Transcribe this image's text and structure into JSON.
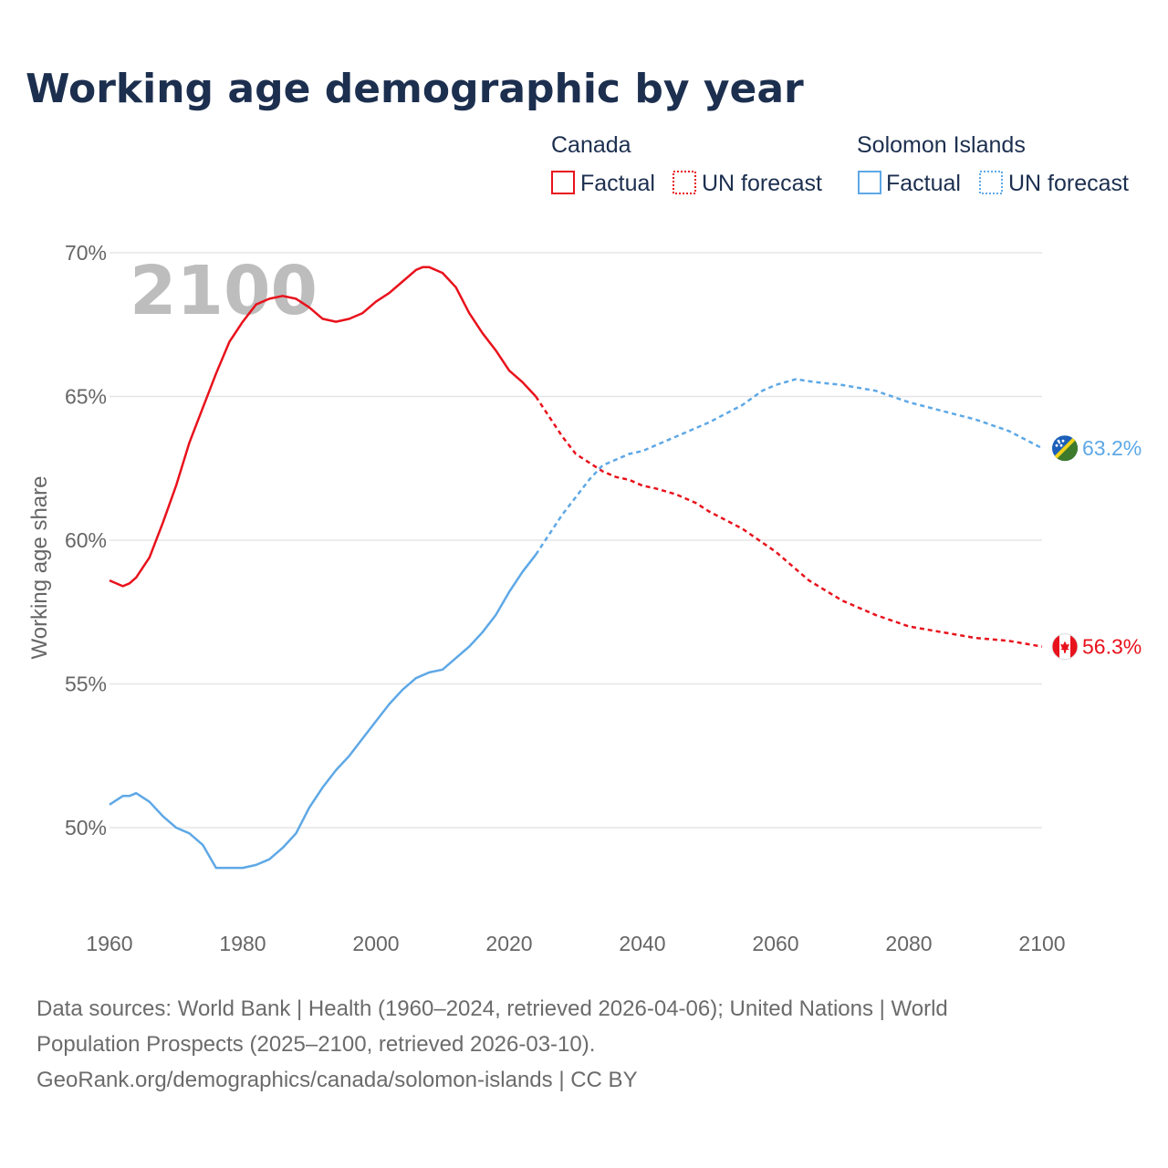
{
  "colors": {
    "canada": "#e8121c",
    "solomon": "#5ea8e6",
    "grid": "#e6e6e6",
    "text": "#1c2f4f",
    "muted": "#666666"
  },
  "chart_data": {
    "type": "line",
    "title": "Working age demographic by year",
    "ylabel": "Working age share",
    "xlabel": "",
    "big_year": "2100",
    "xlim": [
      1960,
      2100
    ],
    "ylim": [
      46.5,
      70.5
    ],
    "x_ticks": [
      1960,
      1980,
      2000,
      2020,
      2040,
      2060,
      2080,
      2100
    ],
    "y_ticks": [
      50,
      55,
      60,
      65,
      70
    ],
    "y_tick_labels": [
      "50%",
      "55%",
      "60%",
      "65%",
      "70%"
    ],
    "legend": {
      "groups": [
        {
          "name": "Canada",
          "color": "#e8121c",
          "items": [
            "Factual",
            "UN forecast"
          ]
        },
        {
          "name": "Solomon Islands",
          "color": "#5ea8e6",
          "items": [
            "Factual",
            "UN forecast"
          ]
        }
      ]
    },
    "series": [
      {
        "name": "Canada",
        "color": "#e8121c",
        "flag_icon": "canada-flag-icon",
        "end_label": "56.3%",
        "factual": [
          [
            1960,
            58.6
          ],
          [
            1962,
            58.4
          ],
          [
            1963,
            58.5
          ],
          [
            1964,
            58.7
          ],
          [
            1966,
            59.4
          ],
          [
            1968,
            60.6
          ],
          [
            1970,
            61.9
          ],
          [
            1972,
            63.4
          ],
          [
            1974,
            64.6
          ],
          [
            1976,
            65.8
          ],
          [
            1978,
            66.9
          ],
          [
            1980,
            67.6
          ],
          [
            1982,
            68.2
          ],
          [
            1984,
            68.4
          ],
          [
            1986,
            68.5
          ],
          [
            1988,
            68.4
          ],
          [
            1990,
            68.1
          ],
          [
            1992,
            67.7
          ],
          [
            1994,
            67.6
          ],
          [
            1996,
            67.7
          ],
          [
            1998,
            67.9
          ],
          [
            2000,
            68.3
          ],
          [
            2002,
            68.6
          ],
          [
            2004,
            69.0
          ],
          [
            2006,
            69.4
          ],
          [
            2007,
            69.5
          ],
          [
            2008,
            69.5
          ],
          [
            2010,
            69.3
          ],
          [
            2012,
            68.8
          ],
          [
            2014,
            67.9
          ],
          [
            2016,
            67.2
          ],
          [
            2018,
            66.6
          ],
          [
            2020,
            65.9
          ],
          [
            2022,
            65.5
          ],
          [
            2024,
            65.0
          ]
        ],
        "forecast": [
          [
            2024,
            65.0
          ],
          [
            2026,
            64.3
          ],
          [
            2028,
            63.6
          ],
          [
            2030,
            63.0
          ],
          [
            2032,
            62.7
          ],
          [
            2034,
            62.4
          ],
          [
            2036,
            62.2
          ],
          [
            2038,
            62.1
          ],
          [
            2040,
            61.9
          ],
          [
            2042,
            61.8
          ],
          [
            2045,
            61.6
          ],
          [
            2048,
            61.3
          ],
          [
            2050,
            61.0
          ],
          [
            2055,
            60.4
          ],
          [
            2060,
            59.6
          ],
          [
            2065,
            58.6
          ],
          [
            2070,
            57.9
          ],
          [
            2075,
            57.4
          ],
          [
            2080,
            57.0
          ],
          [
            2085,
            56.8
          ],
          [
            2090,
            56.6
          ],
          [
            2095,
            56.5
          ],
          [
            2100,
            56.3
          ]
        ]
      },
      {
        "name": "Solomon Islands",
        "color": "#5ea8e6",
        "flag_icon": "solomon-islands-flag-icon",
        "end_label": "63.2%",
        "factual": [
          [
            1960,
            50.8
          ],
          [
            1962,
            51.1
          ],
          [
            1963,
            51.1
          ],
          [
            1964,
            51.2
          ],
          [
            1966,
            50.9
          ],
          [
            1968,
            50.4
          ],
          [
            1970,
            50.0
          ],
          [
            1972,
            49.8
          ],
          [
            1974,
            49.4
          ],
          [
            1975,
            49.0
          ],
          [
            1976,
            48.6
          ],
          [
            1978,
            48.6
          ],
          [
            1980,
            48.6
          ],
          [
            1982,
            48.7
          ],
          [
            1984,
            48.9
          ],
          [
            1986,
            49.3
          ],
          [
            1988,
            49.8
          ],
          [
            1990,
            50.7
          ],
          [
            1992,
            51.4
          ],
          [
            1994,
            52.0
          ],
          [
            1996,
            52.5
          ],
          [
            1998,
            53.1
          ],
          [
            2000,
            53.7
          ],
          [
            2002,
            54.3
          ],
          [
            2004,
            54.8
          ],
          [
            2006,
            55.2
          ],
          [
            2008,
            55.4
          ],
          [
            2010,
            55.5
          ],
          [
            2012,
            55.9
          ],
          [
            2014,
            56.3
          ],
          [
            2016,
            56.8
          ],
          [
            2018,
            57.4
          ],
          [
            2020,
            58.2
          ],
          [
            2022,
            58.9
          ],
          [
            2024,
            59.5
          ]
        ],
        "forecast": [
          [
            2024,
            59.5
          ],
          [
            2026,
            60.2
          ],
          [
            2028,
            60.9
          ],
          [
            2030,
            61.5
          ],
          [
            2032,
            62.1
          ],
          [
            2034,
            62.6
          ],
          [
            2036,
            62.8
          ],
          [
            2038,
            63.0
          ],
          [
            2040,
            63.1
          ],
          [
            2045,
            63.6
          ],
          [
            2050,
            64.1
          ],
          [
            2055,
            64.7
          ],
          [
            2058,
            65.2
          ],
          [
            2060,
            65.4
          ],
          [
            2063,
            65.6
          ],
          [
            2066,
            65.5
          ],
          [
            2070,
            65.4
          ],
          [
            2075,
            65.2
          ],
          [
            2080,
            64.8
          ],
          [
            2085,
            64.5
          ],
          [
            2090,
            64.2
          ],
          [
            2095,
            63.8
          ],
          [
            2100,
            63.2
          ]
        ]
      }
    ]
  },
  "footer": {
    "line1": "Data sources: World Bank | Health (1960–2024, retrieved 2026-04-06); United Nations | World",
    "line2": "Population Prospects (2025–2100, retrieved 2026-03-10).",
    "line3": "GeoRank.org/demographics/canada/solomon-islands | CC BY"
  }
}
